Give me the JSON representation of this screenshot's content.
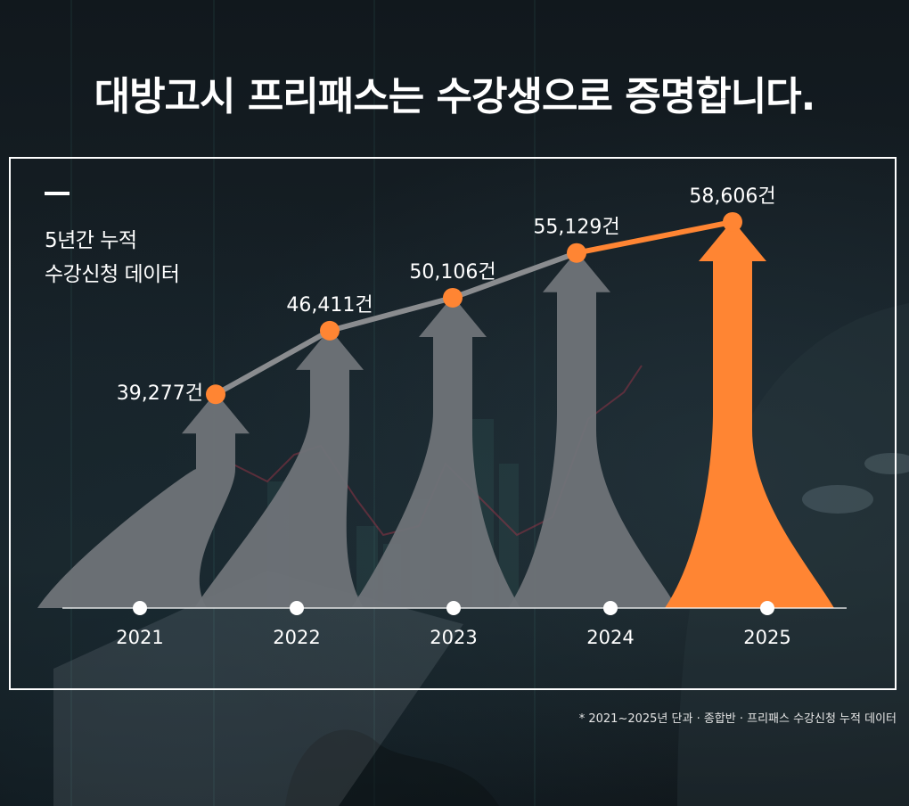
{
  "headline": "대방고시 프리패스는 수강생으로 증명합니다.",
  "side_label": {
    "line1": "5년간 누적",
    "line2": "수강신청 데이터"
  },
  "footnote": "* 2021~2025년 단과 · 종합반 · 프리패스 수강신청 누적 데이터",
  "colors": {
    "accent": "#ff8533",
    "arrow_gray": "#6f7378",
    "line_gray": "#8a8c8f",
    "text": "#ffffff"
  },
  "chart_data": {
    "type": "line",
    "categories": [
      "2021",
      "2022",
      "2023",
      "2024",
      "2025"
    ],
    "values": [
      39277,
      46411,
      50106,
      55129,
      58606
    ],
    "value_labels": [
      "39,277건",
      "46,411건",
      "50,106건",
      "55,129건",
      "58,606건"
    ],
    "highlight_index": 4,
    "title": "",
    "xlabel": "",
    "ylabel": "",
    "grid": false,
    "legend": "none"
  }
}
